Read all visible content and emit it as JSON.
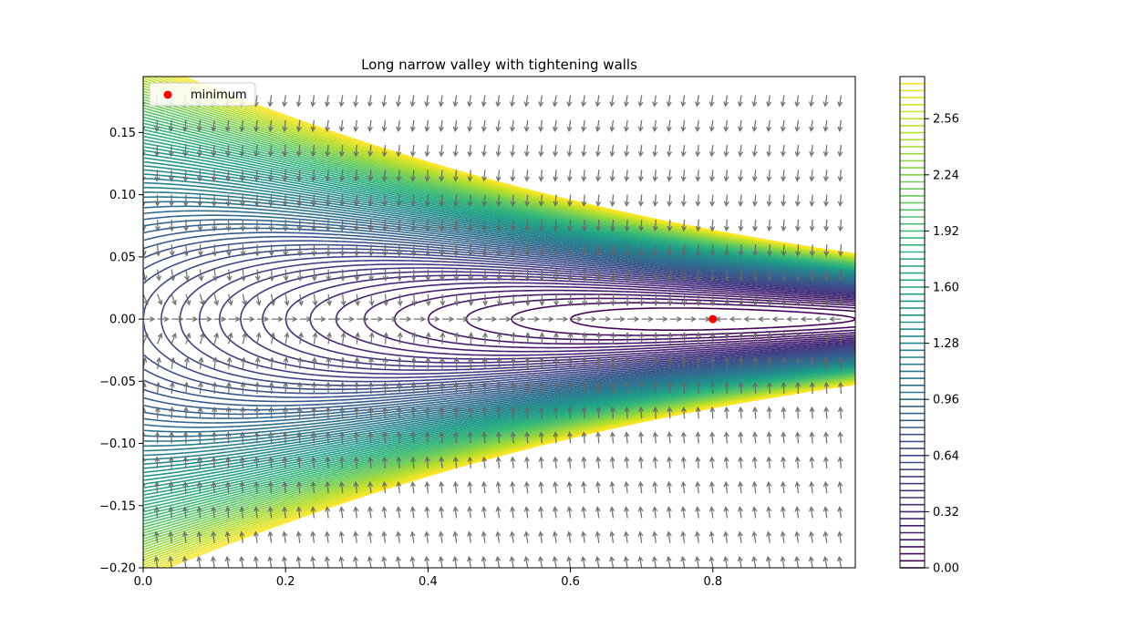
{
  "chart_data": {
    "type": "contour",
    "title": "Long narrow valley with tightening walls",
    "xlabel": "",
    "ylabel": "",
    "xlim": [
      0.0,
      1.0
    ],
    "ylim": [
      -0.2,
      0.195
    ],
    "x_ticks": [
      {
        "value": 0.0,
        "label": "0.0"
      },
      {
        "value": 0.2,
        "label": "0.2"
      },
      {
        "value": 0.4,
        "label": "0.4"
      },
      {
        "value": 0.6,
        "label": "0.6"
      },
      {
        "value": 0.8,
        "label": "0.8"
      }
    ],
    "y_ticks": [
      {
        "value": -0.2,
        "label": "−0.20"
      },
      {
        "value": -0.15,
        "label": "−0.15"
      },
      {
        "value": -0.1,
        "label": "−0.10"
      },
      {
        "value": -0.05,
        "label": "−0.05"
      },
      {
        "value": 0.0,
        "label": "0.00"
      },
      {
        "value": 0.05,
        "label": "0.05"
      },
      {
        "value": 0.1,
        "label": "0.10"
      },
      {
        "value": 0.15,
        "label": "0.15"
      }
    ],
    "contour_levels": {
      "min": 0.0,
      "max": 2.8,
      "step": 0.04
    },
    "colormap": "viridis",
    "colorbar": {
      "range": [
        0.0,
        2.8
      ],
      "ticks": [
        {
          "value": 0.0,
          "label": "0.00"
        },
        {
          "value": 0.32,
          "label": "0.32"
        },
        {
          "value": 0.64,
          "label": "0.64"
        },
        {
          "value": 0.96,
          "label": "0.96"
        },
        {
          "value": 1.28,
          "label": "1.28"
        },
        {
          "value": 1.6,
          "label": "1.60"
        },
        {
          "value": 1.92,
          "label": "1.92"
        },
        {
          "value": 2.24,
          "label": "2.24"
        },
        {
          "value": 2.56,
          "label": "2.56"
        }
      ]
    },
    "vector_field": {
      "shown": true,
      "color": "#666666",
      "direction": "negative-gradient"
    },
    "minimum_point": {
      "x": 0.8,
      "y": 0.0,
      "color": "#ff0000"
    },
    "legend": {
      "entries": [
        {
          "label": "minimum",
          "marker": "circle",
          "color": "#ff0000"
        }
      ],
      "placement": "upper-left"
    },
    "grid": false
  }
}
